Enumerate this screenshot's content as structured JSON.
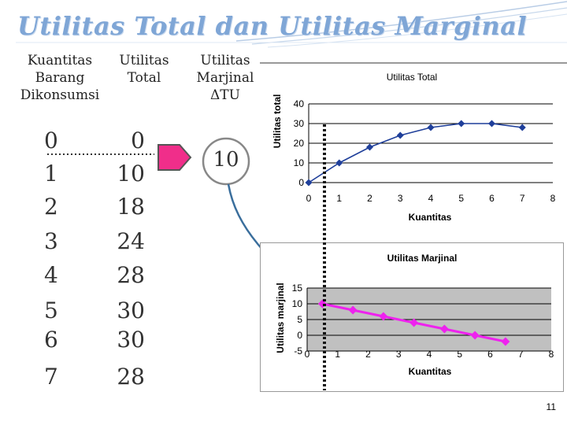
{
  "slide": {
    "title": "Utilitas Total dan Utilitas Marginal",
    "page_number": "11"
  },
  "table": {
    "headers": {
      "quantity": [
        "Kuantitas",
        "Barang",
        "Dikonsumsi"
      ],
      "total": [
        "Utilitas",
        "Total"
      ],
      "marginal": [
        "Utilitas",
        "Marjinal",
        "ΔTU"
      ]
    },
    "quantities": [
      "0",
      "1",
      "2",
      "3",
      "4",
      "5",
      "6",
      "7"
    ],
    "total_utilities": [
      "0",
      "10",
      "18",
      "24",
      "28",
      "30",
      "30",
      "28"
    ],
    "marginal_shown": "10"
  },
  "chart_data": [
    {
      "type": "line",
      "title": "Utilitas Total",
      "xlabel": "Kuantitas",
      "ylabel": "Utilitas total",
      "x": [
        0,
        1,
        2,
        3,
        4,
        5,
        6,
        7
      ],
      "values": [
        0,
        10,
        18,
        24,
        28,
        30,
        30,
        28
      ],
      "xlim": [
        0,
        8
      ],
      "ylim": [
        0,
        40
      ],
      "x_ticks": [
        "0",
        "1",
        "2",
        "3",
        "4",
        "5",
        "6",
        "7",
        "8"
      ],
      "y_ticks": [
        "0",
        "10",
        "20",
        "30",
        "40"
      ],
      "color": "#1f3f9a",
      "grid": true
    },
    {
      "type": "line",
      "title": "Utilitas Marjinal",
      "xlabel": "Kuantitas",
      "ylabel": "Utilitas marjinal",
      "x": [
        0.5,
        1.5,
        2.5,
        3.5,
        4.5,
        5.5,
        6.5
      ],
      "values": [
        10,
        8,
        6,
        4,
        2,
        0,
        -2
      ],
      "xlim": [
        0,
        8
      ],
      "ylim": [
        -5,
        15
      ],
      "x_ticks": [
        "0",
        "1",
        "2",
        "3",
        "4",
        "5",
        "6",
        "7",
        "8"
      ],
      "y_ticks": [
        "-5",
        "0",
        "5",
        "10",
        "15"
      ],
      "color": "#ee22ee",
      "grid": true
    }
  ]
}
